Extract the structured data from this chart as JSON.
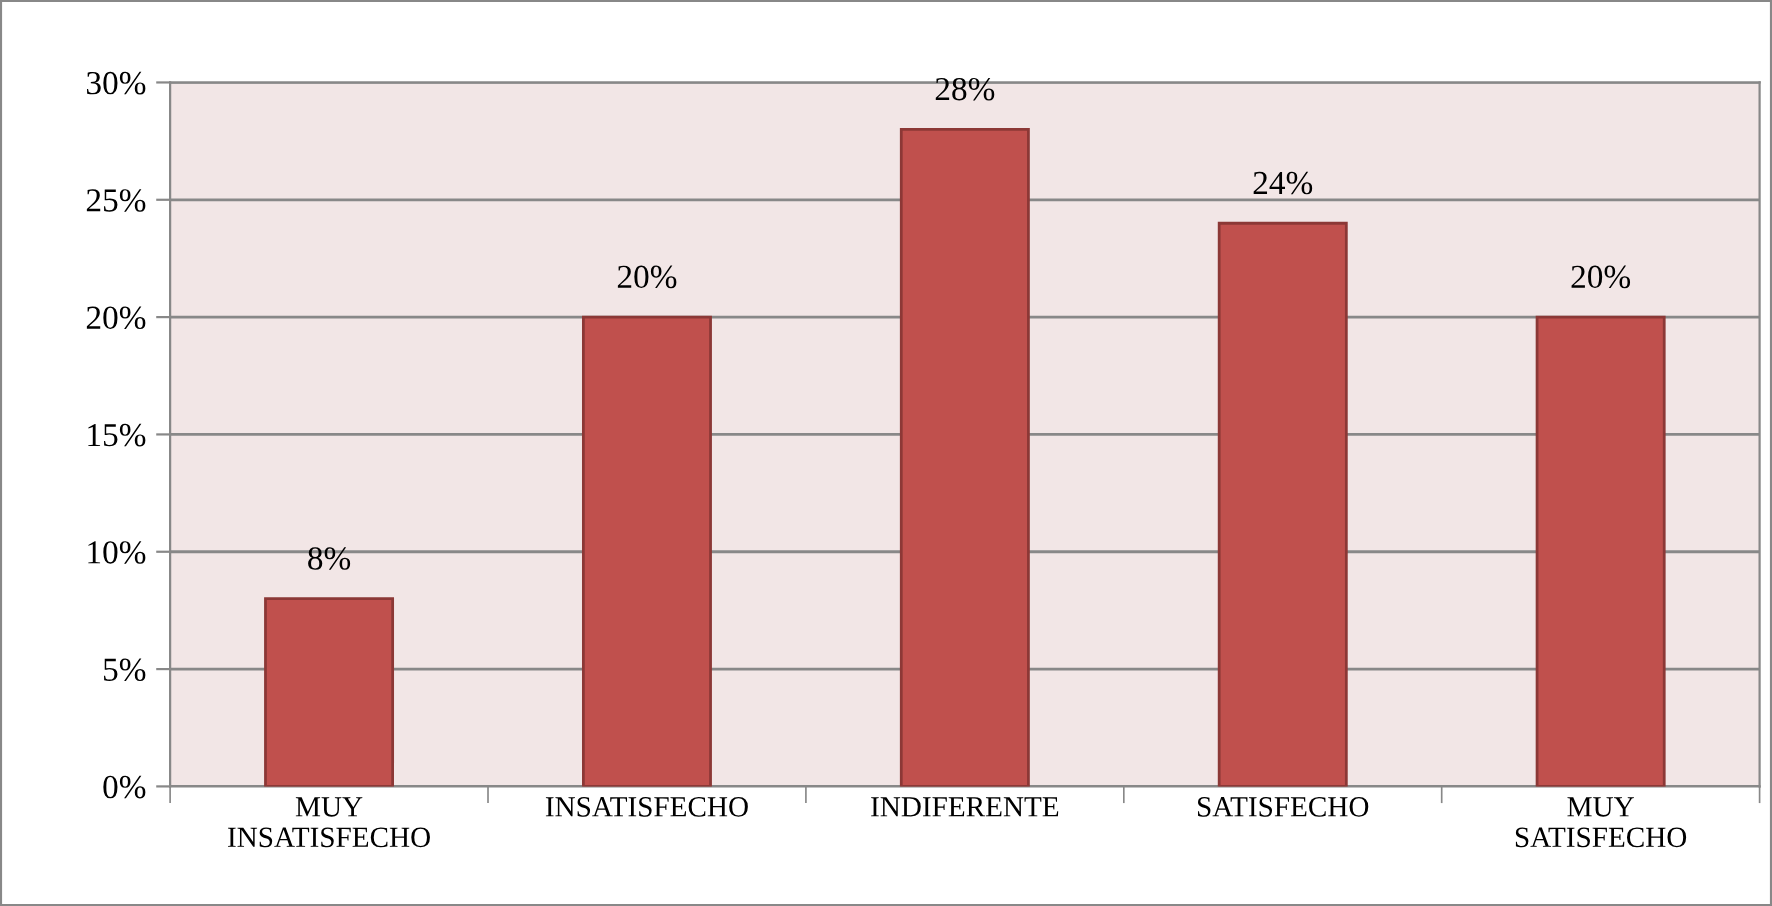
{
  "chart_data": {
    "type": "bar",
    "categories": [
      "MUY INSATISFECHO",
      "INSATISFECHO",
      "INDIFERENTE",
      "SATISFECHO",
      "MUY SATISFECHO"
    ],
    "values": [
      8,
      20,
      28,
      24,
      20
    ],
    "color": "#c0504d",
    "value_labels": [
      "8%",
      "20%",
      "28%",
      "24%",
      "20%"
    ],
    "ylim": [
      0,
      30
    ],
    "yticks": [
      {
        "value": 0,
        "label": "0%"
      },
      {
        "value": 5,
        "label": "5%"
      },
      {
        "value": 10,
        "label": "10%"
      },
      {
        "value": 15,
        "label": "15%"
      },
      {
        "value": 20,
        "label": "20%"
      },
      {
        "value": 25,
        "label": "25%"
      },
      {
        "value": 30,
        "label": "30%"
      }
    ],
    "grid": "y",
    "legend": false
  }
}
